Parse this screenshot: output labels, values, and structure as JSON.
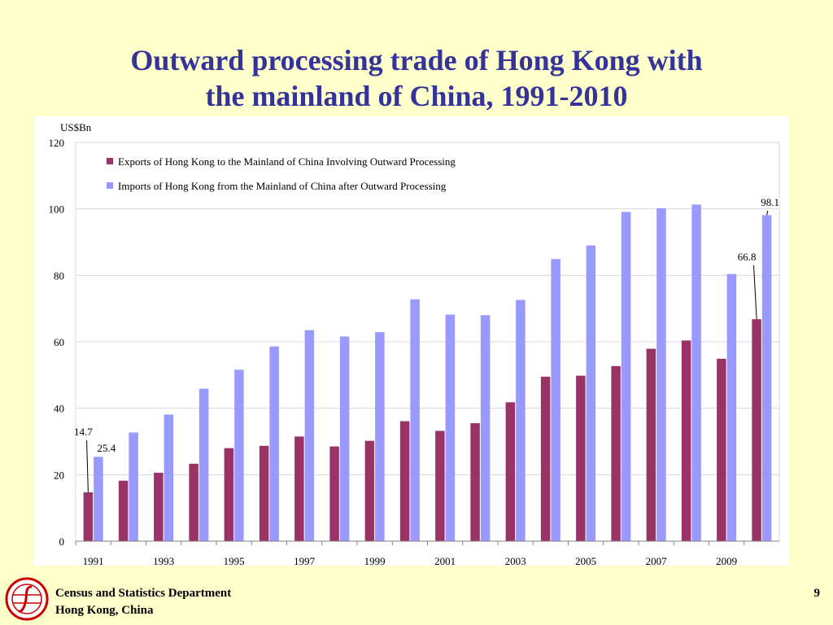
{
  "slide": {
    "title_line1": "Outward processing trade of Hong Kong with",
    "title_line2": "the mainland of China, 1991-2010",
    "footer_department": "Census and Statistics Department",
    "footer_location": "Hong Kong, China",
    "page_number": "9"
  },
  "colors": {
    "background": "#ffffcc",
    "title": "#333399",
    "exports": "#993366",
    "imports": "#9999ff"
  },
  "chart_data": {
    "type": "bar",
    "y_unit_label": "US$Bn",
    "ylim": [
      0,
      120
    ],
    "yticks": [
      0,
      20,
      40,
      60,
      80,
      100,
      120
    ],
    "grid": true,
    "legend_position": "top-left",
    "categories": [
      "1991",
      "1992",
      "1993",
      "1994",
      "1995",
      "1996",
      "1997",
      "1998",
      "1999",
      "2000",
      "2001",
      "2002",
      "2003",
      "2004",
      "2005",
      "2006",
      "2007",
      "2008",
      "2009",
      "2010"
    ],
    "x_tick_labels": [
      "1991",
      "1993",
      "1995",
      "1997",
      "1999",
      "2001",
      "2003",
      "2005",
      "2007",
      "2009"
    ],
    "series": [
      {
        "name": "Exports of Hong Kong to the Mainland of China Involving Outward Processing",
        "color": "#993366",
        "values": [
          14.7,
          18.2,
          20.6,
          23.3,
          28.0,
          28.7,
          31.5,
          28.5,
          30.2,
          36.1,
          33.2,
          35.5,
          41.8,
          49.5,
          49.8,
          52.7,
          57.9,
          60.4,
          54.9,
          66.8
        ]
      },
      {
        "name": "Imports of Hong Kong from the Mainland of China after Outward Processing",
        "color": "#9999ff",
        "values": [
          25.4,
          32.7,
          38.1,
          45.9,
          51.6,
          58.6,
          63.5,
          61.6,
          62.9,
          72.8,
          68.2,
          68.0,
          72.6,
          84.9,
          89.0,
          99.1,
          100.2,
          101.3,
          80.4,
          98.1
        ]
      }
    ],
    "annotations": [
      {
        "series": 0,
        "index": 0,
        "text": "14.7"
      },
      {
        "series": 1,
        "index": 0,
        "text": "25.4"
      },
      {
        "series": 0,
        "index": 19,
        "text": "66.8"
      },
      {
        "series": 1,
        "index": 19,
        "text": "98.1"
      }
    ]
  }
}
